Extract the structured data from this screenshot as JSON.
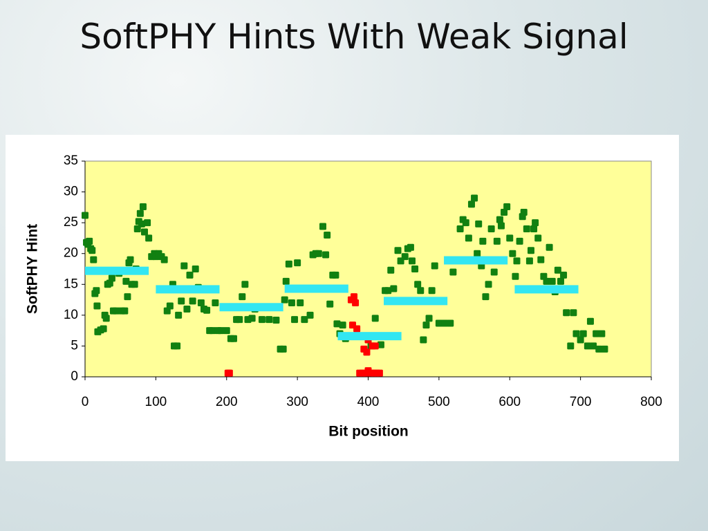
{
  "title": "SoftPHY Hints With Weak Signal",
  "chart_data": {
    "type": "scatter",
    "xlabel": "Bit position",
    "ylabel": "SoftPHY Hint",
    "xlim": [
      0,
      800
    ],
    "ylim": [
      0,
      35
    ],
    "xticks": [
      0,
      100,
      200,
      300,
      400,
      500,
      600,
      700,
      800
    ],
    "yticks": [
      0,
      5,
      10,
      15,
      20,
      25,
      30,
      35
    ],
    "plot_background": "#ffff99",
    "series": [
      {
        "color": "#118011",
        "x": [
          0,
          2,
          4,
          6,
          8,
          10,
          12,
          14,
          16,
          17,
          18,
          22,
          26,
          28,
          30,
          32,
          35,
          38,
          40,
          44,
          48,
          52,
          56,
          58,
          60,
          62,
          64,
          66,
          70,
          72,
          74,
          76,
          78,
          80,
          82,
          84,
          88,
          90,
          94,
          98,
          100,
          104,
          108,
          112,
          116,
          120,
          124,
          126,
          130,
          132,
          136,
          140,
          144,
          148,
          152,
          156,
          160,
          164,
          168,
          172,
          176,
          180,
          184,
          188,
          192,
          200,
          206,
          210,
          214,
          218,
          222,
          226,
          230,
          236,
          240,
          250,
          260,
          270,
          276,
          280,
          282,
          284,
          288,
          292,
          296,
          300,
          304,
          310,
          318,
          322,
          326,
          330,
          336,
          340,
          342,
          346,
          350,
          354,
          356,
          360,
          364,
          368,
          404,
          410,
          418,
          424,
          428,
          432,
          436,
          442,
          446,
          452,
          456,
          460,
          462,
          466,
          470,
          474,
          478,
          482,
          486,
          490,
          494,
          500,
          508,
          516,
          520,
          530,
          534,
          538,
          542,
          546,
          550,
          554,
          556,
          560,
          562,
          566,
          570,
          574,
          578,
          582,
          586,
          588,
          592,
          596,
          600,
          604,
          608,
          610,
          614,
          618,
          620,
          624,
          628,
          630,
          634,
          636,
          640,
          644,
          648,
          652,
          656,
          660,
          664,
          668,
          672,
          676,
          680,
          686,
          690,
          694,
          700,
          704,
          710,
          714,
          718,
          722,
          726,
          730,
          734
        ],
        "values": [
          26.2,
          21.8,
          21.5,
          22,
          20.8,
          20.5,
          19,
          13.5,
          14,
          11.5,
          7.3,
          7.6,
          7.8,
          10,
          9.5,
          15,
          15.2,
          16,
          10.7,
          10.7,
          16.8,
          10.7,
          10.7,
          15.5,
          13,
          18.5,
          19,
          15,
          15,
          17.5,
          24,
          25.2,
          26.5,
          24.8,
          27.6,
          23.5,
          25,
          22.5,
          19.5,
          20,
          19.5,
          20,
          19.5,
          19,
          10.7,
          11.5,
          15,
          5,
          5,
          10,
          12.3,
          18,
          11,
          16.5,
          12.3,
          17.5,
          14.5,
          12,
          11,
          10.8,
          7.5,
          7.5,
          12,
          7.5,
          7.5,
          7.5,
          6.2,
          6.2,
          9.3,
          9.3,
          13,
          15,
          9.3,
          9.5,
          11,
          9.3,
          9.3,
          9.2,
          4.5,
          4.5,
          12.5,
          15.5,
          18.3,
          12,
          9.3,
          18.5,
          12,
          9.3,
          10,
          19.8,
          20,
          20,
          24.4,
          19.8,
          23,
          11.8,
          16.5,
          16.5,
          8.6,
          7,
          8.4,
          6.2,
          5,
          9.5,
          5.2,
          14,
          14,
          17.3,
          14.3,
          20.5,
          18.8,
          19.5,
          20.8,
          21,
          18.8,
          17.5,
          15,
          14,
          6,
          8.4,
          9.5,
          14,
          18,
          8.7,
          8.7,
          8.7,
          17,
          24,
          25.5,
          25,
          22.5,
          28,
          29,
          20,
          24.8,
          18,
          22,
          13,
          15,
          24,
          17,
          22,
          25.5,
          24.5,
          26.7,
          27.6,
          22.5,
          20,
          16.3,
          18.8,
          22,
          26,
          26.7,
          24,
          18.8,
          20.5,
          24,
          25,
          22.5,
          19,
          16.3,
          15.5,
          21,
          15.5,
          13.8,
          17.3,
          15.5,
          16.5,
          10.4,
          5,
          10.4,
          7,
          6,
          7,
          5,
          9,
          5,
          7,
          4.5,
          7,
          4.5
        ]
      },
      {
        "color": "#ff0000",
        "x": [
          202,
          204,
          376,
          380,
          382,
          378,
          384,
          388,
          392,
          396,
          400,
          404,
          408,
          412,
          416,
          398,
          400,
          406,
          410,
          394,
          390
        ],
        "values": [
          0.6,
          0.6,
          12.5,
          13,
          12,
          8.4,
          7.8,
          0.6,
          0.6,
          0.6,
          1,
          0.6,
          0.6,
          0.6,
          0.6,
          4,
          6,
          5,
          5,
          4.5,
          6.5
        ]
      }
    ],
    "segments": {
      "color": "#33e6f2",
      "x_start": [
        0,
        100,
        190,
        282,
        357,
        422,
        507,
        607
      ],
      "x_end": [
        90,
        190,
        280,
        372,
        447,
        512,
        597,
        697
      ],
      "values": [
        17.2,
        14.2,
        11.3,
        14.3,
        6.6,
        12.3,
        18.9,
        14.2
      ]
    }
  }
}
